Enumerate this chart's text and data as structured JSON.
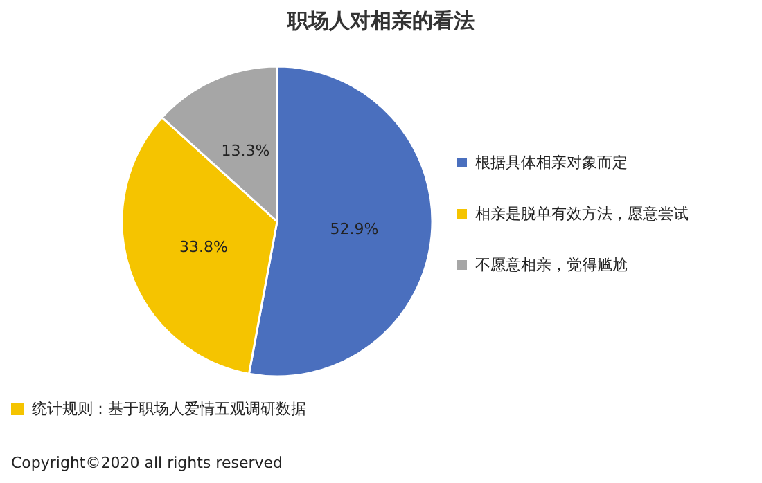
{
  "chart_data": {
    "type": "pie",
    "title": "职场人对相亲的看法",
    "categories": [
      "根据具体相亲对象而定",
      "相亲是脱单有效方法，愿意尝试",
      "不愿意相亲，觉得尴尬"
    ],
    "values": [
      52.9,
      33.8,
      13.3
    ],
    "value_labels": [
      "52.9%",
      "33.8%",
      "13.3%"
    ],
    "colors": [
      "#4a6fbe",
      "#f5c400",
      "#a6a6a6"
    ],
    "legend": "right",
    "annotations": [
      "统计规则：基于职场人爱情五观调研数据",
      "Copyright©2020 all rights reserved"
    ]
  }
}
